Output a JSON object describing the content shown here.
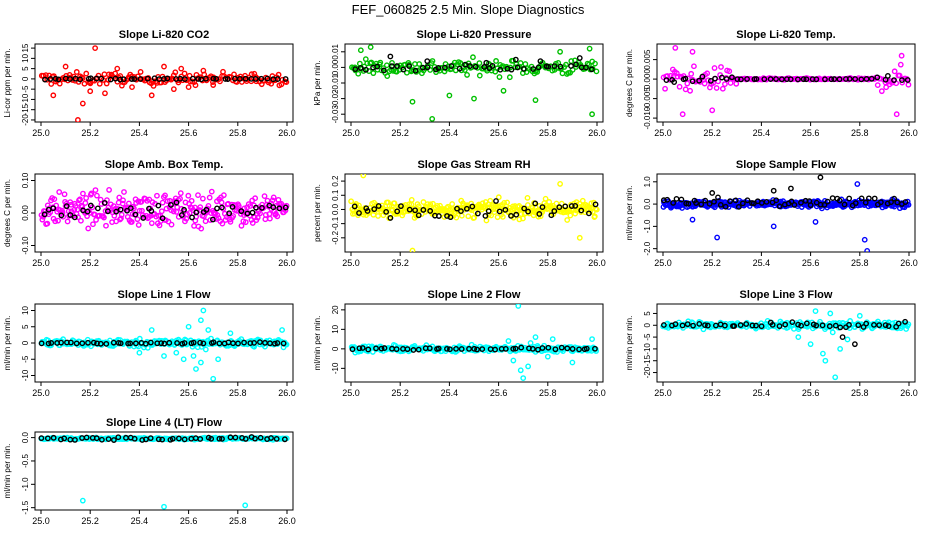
{
  "figure": {
    "title": "FEF_060825  2.5 Min. Slope Diagnostics"
  },
  "chart_data": [
    {
      "type": "scatter",
      "title": "Slope Li-820 CO2",
      "ylabel": "Li-cor ppm per min.",
      "xlim": [
        25.0,
        26.0
      ],
      "ylim": [
        -21,
        17
      ],
      "xticks": [
        "25.0",
        "25.2",
        "25.4",
        "25.6",
        "25.8",
        "26.0"
      ],
      "yticks": [
        {
          "v": 15,
          "label": "15"
        },
        {
          "v": 10,
          "label": "10"
        },
        {
          "v": 5,
          "label": "5"
        },
        {
          "v": 0,
          "label": "0"
        },
        {
          "v": -5,
          "label": "-5"
        },
        {
          "v": -10,
          "label": "-10"
        },
        {
          "v": -15,
          "label": "-15"
        },
        {
          "v": -20,
          "label": "-20"
        }
      ],
      "series": [
        {
          "name": "all",
          "color": "#ff0000",
          "center": 0,
          "spread": 3,
          "taper": 0,
          "n": 160,
          "extra": [
            [
              25.05,
              -8
            ],
            [
              25.1,
              6
            ],
            [
              25.17,
              -12
            ],
            [
              25.2,
              -6
            ],
            [
              25.22,
              15
            ],
            [
              25.26,
              -7
            ],
            [
              25.31,
              5
            ],
            [
              25.37,
              -4
            ],
            [
              25.45,
              -8
            ],
            [
              25.5,
              6
            ],
            [
              25.54,
              -5
            ],
            [
              25.57,
              5
            ],
            [
              25.6,
              -4
            ],
            [
              25.66,
              4
            ],
            [
              25.7,
              -3
            ],
            [
              25.15,
              -20
            ]
          ]
        },
        {
          "name": "selected",
          "color": "#000000",
          "center": 0,
          "spread": 0.3,
          "taper": 0,
          "n": 45
        }
      ]
    },
    {
      "type": "scatter",
      "title": "Slope Li-820 Pressure",
      "ylabel": "kPa per min.",
      "xlim": [
        25.0,
        26.0
      ],
      "ylim": [
        -0.035,
        0.015
      ],
      "xticks": [
        "25.0",
        "25.2",
        "25.4",
        "25.6",
        "25.8",
        "26.0"
      ],
      "yticks": [
        {
          "v": 0.01,
          "label": "0.01"
        },
        {
          "v": 0.0,
          "label": "0.00"
        },
        {
          "v": -0.01,
          "label": "-0.01"
        },
        {
          "v": -0.02,
          "label": "-0.02"
        },
        {
          "v": -0.03,
          "label": "-0.03"
        }
      ],
      "series": [
        {
          "name": "all",
          "color": "#00c000",
          "center": 0,
          "spread": 0.005,
          "taper": 0,
          "n": 170,
          "extra": [
            [
              25.08,
              0.013
            ],
            [
              25.25,
              -0.022
            ],
            [
              25.33,
              -0.033
            ],
            [
              25.4,
              -0.018
            ],
            [
              25.5,
              -0.02
            ],
            [
              25.62,
              -0.015
            ],
            [
              25.75,
              -0.021
            ],
            [
              25.85,
              0.01
            ],
            [
              25.97,
              0.012
            ],
            [
              25.98,
              -0.03
            ],
            [
              25.04,
              0.011
            ]
          ]
        },
        {
          "name": "selected",
          "color": "#000000",
          "center": 0,
          "spread": 0.002,
          "taper": 0,
          "n": 40,
          "extra": [
            [
              25.16,
              0.007
            ],
            [
              25.31,
              0.004
            ],
            [
              25.55,
              0.003
            ],
            [
              25.67,
              0.005
            ],
            [
              25.77,
              0.004
            ],
            [
              25.93,
              0.006
            ]
          ]
        }
      ]
    },
    {
      "type": "scatter",
      "title": "Slope Li-820 Temp.",
      "ylabel": "degrees C per min.",
      "xlim": [
        25.0,
        26.0
      ],
      "ylim": [
        -0.011,
        0.009
      ],
      "xticks": [
        "25.0",
        "25.2",
        "25.4",
        "25.6",
        "25.8",
        "26.0"
      ],
      "yticks": [
        {
          "v": 0.005,
          "label": "0.005"
        },
        {
          "v": 0.0,
          "label": "0.000"
        },
        {
          "v": -0.005,
          "label": "-0.005"
        },
        {
          "v": -0.01,
          "label": "-0.010"
        }
      ],
      "series": [
        {
          "name": "all",
          "color": "#ff00ff",
          "center": 0,
          "spread": 0.003,
          "taper": 1,
          "n": 170,
          "extra": [
            [
              25.05,
              0.008
            ],
            [
              25.08,
              -0.009
            ],
            [
              25.12,
              0.007
            ],
            [
              25.2,
              -0.008
            ],
            [
              25.95,
              -0.009
            ],
            [
              25.97,
              0.006
            ]
          ]
        },
        {
          "name": "selected",
          "color": "#000000",
          "center": 0,
          "spread": 0.001,
          "taper": 1,
          "n": 45
        }
      ]
    },
    {
      "type": "scatter",
      "title": "Slope Amb. Box Temp.",
      "ylabel": "degrees C per min.",
      "xlim": [
        25.0,
        26.0
      ],
      "ylim": [
        -0.12,
        0.12
      ],
      "xticks": [
        "25.0",
        "25.2",
        "25.4",
        "25.6",
        "25.8",
        "26.0"
      ],
      "yticks": [
        {
          "v": 0.1,
          "label": "0.10"
        },
        {
          "v": 0.0,
          "label": "0.00"
        },
        {
          "v": -0.1,
          "label": "-0.10"
        }
      ],
      "series": [
        {
          "name": "all",
          "color": "#ff00ff",
          "center": 0.01,
          "spread": 0.05,
          "taper": 0,
          "n": 300
        },
        {
          "name": "selected",
          "color": "#000000",
          "center": 0.01,
          "spread": 0.03,
          "taper": 0,
          "n": 45
        }
      ]
    },
    {
      "type": "scatter",
      "title": "Slope Gas Stream RH",
      "ylabel": "percent per min.",
      "xlim": [
        25.0,
        26.0
      ],
      "ylim": [
        -0.3,
        0.25
      ],
      "xticks": [
        "25.0",
        "25.2",
        "25.4",
        "25.6",
        "25.8",
        "26.0"
      ],
      "yticks": [
        {
          "v": 0.2,
          "label": "0.2"
        },
        {
          "v": 0.1,
          "label": "0.1"
        },
        {
          "v": 0.0,
          "label": "0.0"
        },
        {
          "v": -0.1,
          "label": "-0.1"
        },
        {
          "v": -0.2,
          "label": "-0.2"
        }
      ],
      "series": [
        {
          "name": "all",
          "color": "#ffff00",
          "center": 0,
          "spread": 0.06,
          "taper": 0,
          "n": 320,
          "extra": [
            [
              25.05,
              0.24
            ],
            [
              25.25,
              -0.29
            ],
            [
              25.85,
              0.18
            ],
            [
              25.93,
              -0.2
            ]
          ]
        },
        {
          "name": "selected",
          "color": "#000000",
          "center": 0,
          "spread": 0.05,
          "taper": 0,
          "n": 45
        }
      ]
    },
    {
      "type": "scatter",
      "title": "Slope Sample Flow",
      "ylabel": "ml/min per min.",
      "xlim": [
        25.0,
        26.0
      ],
      "ylim": [
        -2.15,
        1.35
      ],
      "xticks": [
        "25.0",
        "25.2",
        "25.4",
        "25.6",
        "25.8",
        "26.0"
      ],
      "yticks": [
        {
          "v": 1.0,
          "label": "1.0"
        },
        {
          "v": 0.0,
          "label": "0.0"
        },
        {
          "v": -1.0,
          "label": "-1.0"
        },
        {
          "v": -2.0,
          "label": "-2.0"
        }
      ],
      "series": [
        {
          "name": "all",
          "color": "#0000ff",
          "center": 0,
          "spread": 0.15,
          "taper": 0,
          "n": 330,
          "extra": [
            [
              25.12,
              -0.7
            ],
            [
              25.22,
              -1.5
            ],
            [
              25.45,
              -1.0
            ],
            [
              25.62,
              -0.8
            ],
            [
              25.82,
              -1.6
            ],
            [
              25.83,
              -2.1
            ],
            [
              25.79,
              0.9
            ]
          ]
        },
        {
          "name": "selected",
          "color": "#000000",
          "center": 0.1,
          "spread": 0.2,
          "taper": 0,
          "n": 60,
          "extra": [
            [
              25.64,
              1.2
            ],
            [
              25.52,
              0.7
            ],
            [
              25.2,
              0.5
            ],
            [
              25.45,
              0.6
            ]
          ]
        }
      ]
    },
    {
      "type": "scatter",
      "title": "Slope Line 1 Flow",
      "ylabel": "ml/min per min.",
      "xlim": [
        25.0,
        26.0
      ],
      "ylim": [
        -12,
        12
      ],
      "xticks": [
        "25.0",
        "25.2",
        "25.4",
        "25.6",
        "25.8",
        "26.0"
      ],
      "yticks": [
        {
          "v": 10,
          "label": "10"
        },
        {
          "v": 5,
          "label": "5"
        },
        {
          "v": 0,
          "label": "0"
        },
        {
          "v": -5,
          "label": "-5"
        },
        {
          "v": -10,
          "label": "-10"
        }
      ],
      "series": [
        {
          "name": "all",
          "color": "#00ffff",
          "center": 0,
          "spread": 1.2,
          "taper": 0,
          "n": 250,
          "extra": [
            [
              25.6,
              5
            ],
            [
              25.62,
              -4
            ],
            [
              25.65,
              7
            ],
            [
              25.65,
              -6
            ],
            [
              25.7,
              -11
            ],
            [
              25.66,
              10
            ],
            [
              25.68,
              4
            ],
            [
              25.72,
              -5
            ],
            [
              25.77,
              3
            ],
            [
              25.98,
              4
            ],
            [
              25.4,
              -3
            ],
            [
              25.5,
              -4
            ],
            [
              25.55,
              -3
            ],
            [
              25.58,
              -5
            ],
            [
              25.45,
              4
            ],
            [
              25.63,
              -8
            ],
            [
              25.67,
              -2
            ]
          ]
        },
        {
          "name": "selected",
          "color": "#000000",
          "center": 0,
          "spread": 0.3,
          "taper": 0,
          "n": 50
        }
      ]
    },
    {
      "type": "scatter",
      "title": "Slope Line 2 Flow",
      "ylabel": "ml/min per min.",
      "xlim": [
        25.0,
        26.0
      ],
      "ylim": [
        -17,
        23
      ],
      "xticks": [
        "25.0",
        "25.2",
        "25.4",
        "25.6",
        "25.8",
        "26.0"
      ],
      "yticks": [
        {
          "v": 20,
          "label": "20"
        },
        {
          "v": 10,
          "label": "10"
        },
        {
          "v": 0,
          "label": "0"
        },
        {
          "v": -10,
          "label": "-10"
        }
      ],
      "series": [
        {
          "name": "all",
          "color": "#00ffff",
          "center": 0,
          "spread": 1.5,
          "taper": 0,
          "n": 250,
          "extra": [
            [
              25.68,
              22
            ],
            [
              25.7,
              -15
            ],
            [
              25.66,
              -6
            ],
            [
              25.72,
              -9
            ],
            [
              25.75,
              6
            ],
            [
              25.64,
              4
            ],
            [
              25.8,
              -4
            ],
            [
              25.82,
              5
            ],
            [
              25.9,
              -7
            ],
            [
              25.98,
              5
            ],
            [
              25.69,
              -11
            ],
            [
              25.73,
              3
            ]
          ]
        },
        {
          "name": "selected",
          "color": "#000000",
          "center": 0,
          "spread": 0.6,
          "taper": 0,
          "n": 45
        }
      ]
    },
    {
      "type": "scatter",
      "title": "Slope Line 3 Flow",
      "ylabel": "ml/min per min.",
      "xlim": [
        25.0,
        26.0
      ],
      "ylim": [
        -24,
        9
      ],
      "xticks": [
        "25.0",
        "25.2",
        "25.4",
        "25.6",
        "25.8",
        "26.0"
      ],
      "yticks": [
        {
          "v": 5,
          "label": "5"
        },
        {
          "v": 0,
          "label": "0"
        },
        {
          "v": -5,
          "label": "-5"
        },
        {
          "v": -10,
          "label": "-10"
        },
        {
          "v": -15,
          "label": "-15"
        },
        {
          "v": -20,
          "label": "-20"
        }
      ],
      "series": [
        {
          "name": "all",
          "color": "#00ffff",
          "center": 0,
          "spread": 1.5,
          "taper": 0,
          "n": 250,
          "extra": [
            [
              25.7,
              -22
            ],
            [
              25.65,
              -12
            ],
            [
              25.6,
              -8
            ],
            [
              25.68,
              5
            ],
            [
              25.72,
              -10
            ],
            [
              25.75,
              -6
            ],
            [
              25.62,
              6
            ],
            [
              25.55,
              -5
            ],
            [
              25.8,
              4
            ],
            [
              25.66,
              -15
            ],
            [
              25.69,
              -3
            ]
          ]
        },
        {
          "name": "selected",
          "color": "#000000",
          "center": 0,
          "spread": 1.0,
          "taper": 0,
          "n": 45,
          "extra": [
            [
              25.78,
              -8
            ],
            [
              25.73,
              -5
            ]
          ]
        }
      ]
    },
    {
      "type": "scatter",
      "title": "Slope Line 4 (LT) Flow",
      "ylabel": "ml/min per min.",
      "xlim": [
        25.0,
        26.0
      ],
      "ylim": [
        -1.55,
        0.12
      ],
      "xticks": [
        "25.0",
        "25.2",
        "25.4",
        "25.6",
        "25.8",
        "26.0"
      ],
      "yticks": [
        {
          "v": 0.0,
          "label": "0.0"
        },
        {
          "v": -0.5,
          "label": "-0.5"
        },
        {
          "v": -1.0,
          "label": "-1.0"
        },
        {
          "v": -1.5,
          "label": "-1.5"
        }
      ],
      "series": [
        {
          "name": "all",
          "color": "#00ffff",
          "center": -0.02,
          "spread": 0.02,
          "taper": 0,
          "n": 220,
          "extra": [
            [
              25.17,
              -1.35
            ],
            [
              25.5,
              -1.48
            ],
            [
              25.83,
              -1.45
            ]
          ]
        },
        {
          "name": "selected",
          "color": "#000000",
          "center": -0.02,
          "spread": 0.03,
          "taper": 0,
          "n": 45
        }
      ]
    }
  ]
}
